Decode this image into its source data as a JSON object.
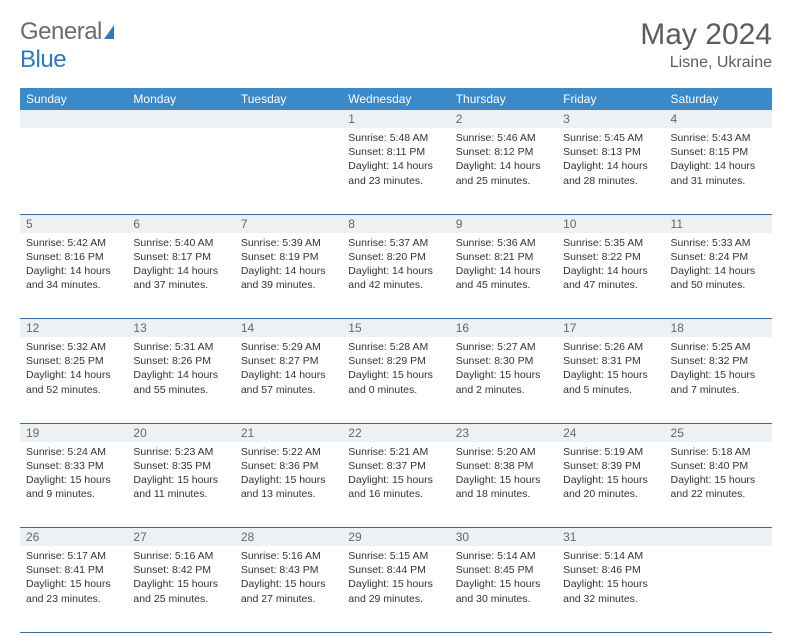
{
  "brand": {
    "part1": "General",
    "part2": "Blue"
  },
  "title": "May 2024",
  "location": "Lisne, Ukraine",
  "colors": {
    "header_bg": "#3a89c9",
    "header_text": "#ffffff",
    "daynum_bg": "#eef1f4",
    "row_border": "#3a6a9a",
    "text": "#333333",
    "title_text": "#5c5c5c",
    "brand_grey": "#6b6b6b",
    "brand_blue": "#2b7bbf"
  },
  "weekdays": [
    "Sunday",
    "Monday",
    "Tuesday",
    "Wednesday",
    "Thursday",
    "Friday",
    "Saturday"
  ],
  "weeks": [
    [
      null,
      null,
      null,
      {
        "n": "1",
        "sr": "5:48 AM",
        "ss": "8:11 PM",
        "dl": "14 hours and 23 minutes."
      },
      {
        "n": "2",
        "sr": "5:46 AM",
        "ss": "8:12 PM",
        "dl": "14 hours and 25 minutes."
      },
      {
        "n": "3",
        "sr": "5:45 AM",
        "ss": "8:13 PM",
        "dl": "14 hours and 28 minutes."
      },
      {
        "n": "4",
        "sr": "5:43 AM",
        "ss": "8:15 PM",
        "dl": "14 hours and 31 minutes."
      }
    ],
    [
      {
        "n": "5",
        "sr": "5:42 AM",
        "ss": "8:16 PM",
        "dl": "14 hours and 34 minutes."
      },
      {
        "n": "6",
        "sr": "5:40 AM",
        "ss": "8:17 PM",
        "dl": "14 hours and 37 minutes."
      },
      {
        "n": "7",
        "sr": "5:39 AM",
        "ss": "8:19 PM",
        "dl": "14 hours and 39 minutes."
      },
      {
        "n": "8",
        "sr": "5:37 AM",
        "ss": "8:20 PM",
        "dl": "14 hours and 42 minutes."
      },
      {
        "n": "9",
        "sr": "5:36 AM",
        "ss": "8:21 PM",
        "dl": "14 hours and 45 minutes."
      },
      {
        "n": "10",
        "sr": "5:35 AM",
        "ss": "8:22 PM",
        "dl": "14 hours and 47 minutes."
      },
      {
        "n": "11",
        "sr": "5:33 AM",
        "ss": "8:24 PM",
        "dl": "14 hours and 50 minutes."
      }
    ],
    [
      {
        "n": "12",
        "sr": "5:32 AM",
        "ss": "8:25 PM",
        "dl": "14 hours and 52 minutes."
      },
      {
        "n": "13",
        "sr": "5:31 AM",
        "ss": "8:26 PM",
        "dl": "14 hours and 55 minutes."
      },
      {
        "n": "14",
        "sr": "5:29 AM",
        "ss": "8:27 PM",
        "dl": "14 hours and 57 minutes."
      },
      {
        "n": "15",
        "sr": "5:28 AM",
        "ss": "8:29 PM",
        "dl": "15 hours and 0 minutes."
      },
      {
        "n": "16",
        "sr": "5:27 AM",
        "ss": "8:30 PM",
        "dl": "15 hours and 2 minutes."
      },
      {
        "n": "17",
        "sr": "5:26 AM",
        "ss": "8:31 PM",
        "dl": "15 hours and 5 minutes."
      },
      {
        "n": "18",
        "sr": "5:25 AM",
        "ss": "8:32 PM",
        "dl": "15 hours and 7 minutes."
      }
    ],
    [
      {
        "n": "19",
        "sr": "5:24 AM",
        "ss": "8:33 PM",
        "dl": "15 hours and 9 minutes."
      },
      {
        "n": "20",
        "sr": "5:23 AM",
        "ss": "8:35 PM",
        "dl": "15 hours and 11 minutes."
      },
      {
        "n": "21",
        "sr": "5:22 AM",
        "ss": "8:36 PM",
        "dl": "15 hours and 13 minutes."
      },
      {
        "n": "22",
        "sr": "5:21 AM",
        "ss": "8:37 PM",
        "dl": "15 hours and 16 minutes."
      },
      {
        "n": "23",
        "sr": "5:20 AM",
        "ss": "8:38 PM",
        "dl": "15 hours and 18 minutes."
      },
      {
        "n": "24",
        "sr": "5:19 AM",
        "ss": "8:39 PM",
        "dl": "15 hours and 20 minutes."
      },
      {
        "n": "25",
        "sr": "5:18 AM",
        "ss": "8:40 PM",
        "dl": "15 hours and 22 minutes."
      }
    ],
    [
      {
        "n": "26",
        "sr": "5:17 AM",
        "ss": "8:41 PM",
        "dl": "15 hours and 23 minutes."
      },
      {
        "n": "27",
        "sr": "5:16 AM",
        "ss": "8:42 PM",
        "dl": "15 hours and 25 minutes."
      },
      {
        "n": "28",
        "sr": "5:16 AM",
        "ss": "8:43 PM",
        "dl": "15 hours and 27 minutes."
      },
      {
        "n": "29",
        "sr": "5:15 AM",
        "ss": "8:44 PM",
        "dl": "15 hours and 29 minutes."
      },
      {
        "n": "30",
        "sr": "5:14 AM",
        "ss": "8:45 PM",
        "dl": "15 hours and 30 minutes."
      },
      {
        "n": "31",
        "sr": "5:14 AM",
        "ss": "8:46 PM",
        "dl": "15 hours and 32 minutes."
      },
      null
    ]
  ],
  "labels": {
    "sunrise": "Sunrise:",
    "sunset": "Sunset:",
    "daylight": "Daylight:"
  }
}
